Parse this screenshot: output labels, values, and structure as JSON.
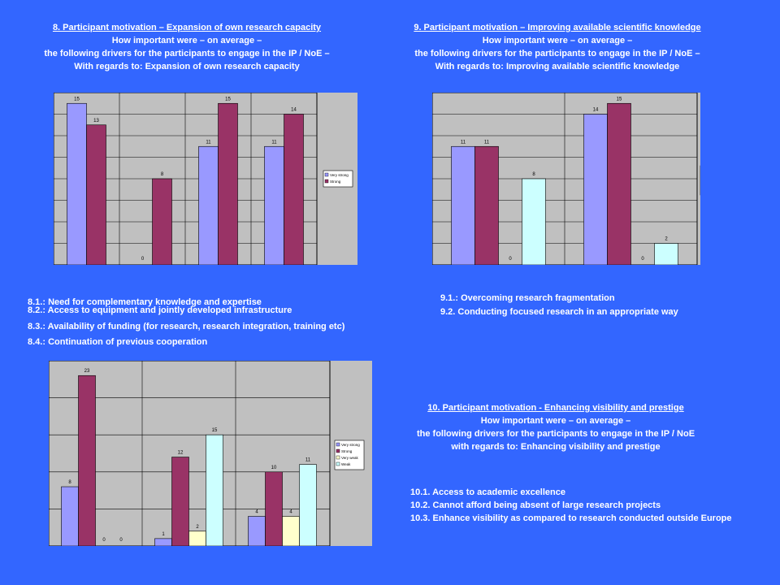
{
  "colors": {
    "background": "#3366ff",
    "plot_bg": "#c0c0c0",
    "very_strong": "#9999ff",
    "strong": "#993366",
    "very_weak": "#ffffcc",
    "weak": "#ccffff"
  },
  "section8": {
    "lines": [
      "8. Participant motivation – Expansion of own research capacity",
      "How important were – on average –",
      "the following drivers for the participants to engage in the IP / NoE –",
      "With regards to: Expansion of own research capacity"
    ],
    "notes": [
      "8.1.: Need for complementary knowledge and expertise",
      "8.2.: Access to equipment and jointly developed infrastructure",
      "8.3.: Availability of funding (for research, research integration, training etc)",
      "8.4.: Continuation of previous cooperation"
    ]
  },
  "section9": {
    "lines": [
      "9. Participant motivation – Improving available scientific knowledge",
      "How important were – on average –",
      "the following drivers for the participants to engage in the IP / NoE –",
      "With regards to: Improving available scientific knowledge"
    ],
    "notes": [
      "9.1.: Overcoming research fragmentation",
      "9.2. Conducting focused research in an appropriate way"
    ]
  },
  "section10": {
    "lines": [
      "10. Participant motivation - Enhancing visibility and prestige",
      "How important were – on average –",
      "the following drivers for the participants to engage in the IP / NoE",
      "with regards to: Enhancing visibility and prestige"
    ],
    "notes": [
      "10.1. Access to academic excellence",
      "10.2. Cannot afford being absent of large research projects",
      "10.3. Enhance visibility as compared to research conducted outside Europe"
    ]
  },
  "chart_data": [
    {
      "type": "bar",
      "categories": [
        "8.1",
        "8.2",
        "8.3",
        "8.4"
      ],
      "ylim": [
        0,
        16
      ],
      "grid": true,
      "legend": "right",
      "series": [
        {
          "name": "Very strong",
          "values": [
            15,
            0,
            11,
            11
          ]
        },
        {
          "name": "Strong",
          "values": [
            13,
            8,
            15,
            14
          ]
        }
      ]
    },
    {
      "type": "bar",
      "categories": [
        "9.1",
        "9.2"
      ],
      "ylim": [
        0,
        16
      ],
      "grid": true,
      "legend": "right",
      "series": [
        {
          "name": "Very strong",
          "values": [
            11,
            14
          ]
        },
        {
          "name": "Strong",
          "values": [
            11,
            15
          ]
        },
        {
          "name": "Very weak",
          "values": [
            0,
            0
          ]
        },
        {
          "name": "Weak",
          "values": [
            8,
            2
          ]
        }
      ]
    },
    {
      "type": "bar",
      "categories": [
        "10.1",
        "10.2",
        "10.3"
      ],
      "ylim": [
        0,
        25
      ],
      "grid": true,
      "legend": "right",
      "series": [
        {
          "name": "Very strong",
          "values": [
            8,
            1,
            4
          ]
        },
        {
          "name": "Strong",
          "values": [
            23,
            12,
            10
          ]
        },
        {
          "name": "Very weak",
          "values": [
            0,
            2,
            4
          ]
        },
        {
          "name": "Weak",
          "values": [
            0,
            15,
            11
          ]
        }
      ]
    }
  ]
}
